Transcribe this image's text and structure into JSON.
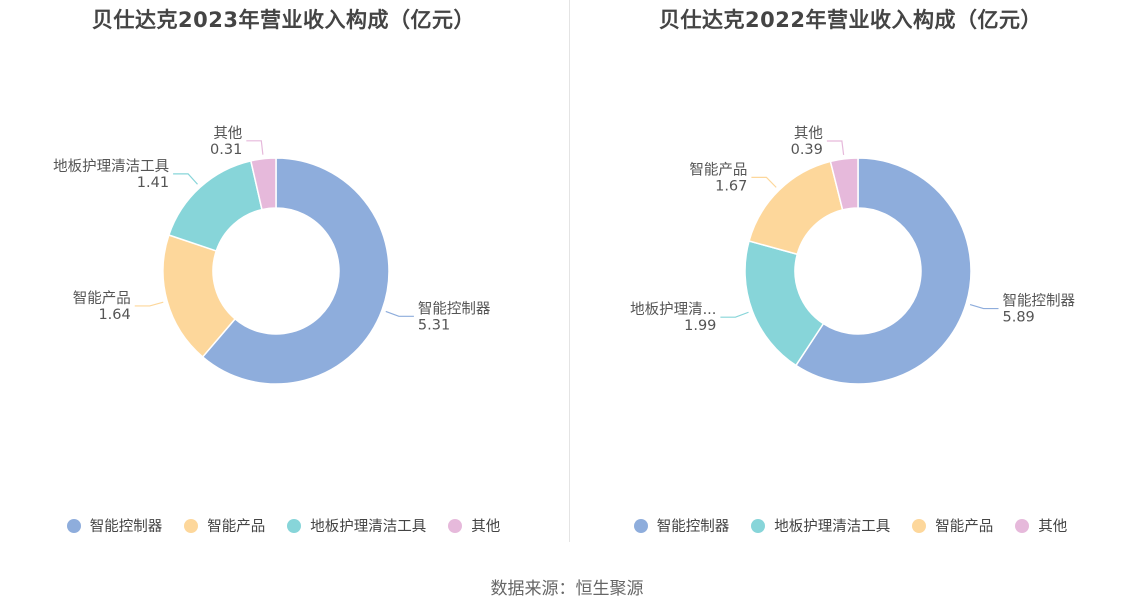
{
  "source_label": "数据来源：恒生聚源",
  "chart_data": [
    {
      "type": "pie",
      "title": "贝仕达克2023年营业收入构成（亿元）",
      "slices": [
        {
          "label": "智能控制器",
          "value": 5.31,
          "color": "#8eaddc"
        },
        {
          "label": "智能产品",
          "value": 1.64,
          "color": "#fdd79b"
        },
        {
          "label": "地板护理清洁工具",
          "value": 1.41,
          "color": "#87d5d9"
        },
        {
          "label": "其他",
          "value": 0.31,
          "color": "#e6b9db"
        }
      ],
      "value_strings": [
        "5.31",
        "1.64",
        "1.41",
        "0.31"
      ],
      "legend": [
        "智能控制器",
        "智能产品",
        "地板护理清洁工具",
        "其他"
      ],
      "legend_placement": "bottom"
    },
    {
      "type": "pie",
      "title": "贝仕达克2022年营业收入构成（亿元）",
      "slices": [
        {
          "label": "智能控制器",
          "value": 5.89,
          "color": "#8eaddc"
        },
        {
          "label": "地板护理清...",
          "value": 1.99,
          "color": "#87d5d9"
        },
        {
          "label": "智能产品",
          "value": 1.67,
          "color": "#fdd79b"
        },
        {
          "label": "其他",
          "value": 0.39,
          "color": "#e6b9db"
        }
      ],
      "value_strings": [
        "5.89",
        "1.99",
        "1.67",
        "0.39"
      ],
      "legend": [
        "智能控制器",
        "地板护理清洁工具",
        "智能产品",
        "其他"
      ],
      "legend_placement": "bottom"
    }
  ]
}
